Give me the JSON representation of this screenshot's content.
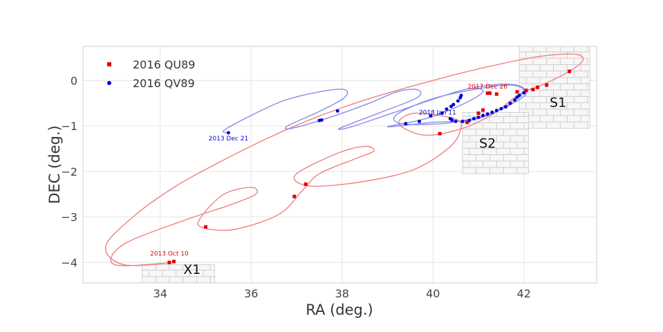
{
  "chart_data": {
    "type": "scatter",
    "xlabel": "RA (deg.)",
    "ylabel": "DEC (deg.)",
    "xlim": [
      32.3,
      43.6
    ],
    "ylim": [
      -4.45,
      0.75
    ],
    "x_ticks": [
      34,
      36,
      38,
      40,
      42
    ],
    "x_tick_labels": [
      "34",
      "36",
      "38",
      "40",
      "42"
    ],
    "y_ticks": [
      0,
      -1,
      -2,
      -3,
      -4
    ],
    "y_tick_labels": [
      "0",
      "−1",
      "−2",
      "−3",
      "−4"
    ],
    "grid": true,
    "legend_position": "top-left",
    "series": [
      {
        "name": "2016 QU89",
        "color": "#e00000",
        "orbit_color": "#f08080",
        "marker": "square",
        "points": [
          [
            34.2,
            -4.0
          ],
          [
            34.3,
            -3.98
          ],
          [
            35.0,
            -3.22
          ],
          [
            36.95,
            -2.55
          ],
          [
            37.2,
            -2.28
          ],
          [
            40.15,
            -1.17
          ],
          [
            40.75,
            -0.92
          ],
          [
            41.0,
            -0.72
          ],
          [
            41.1,
            -0.65
          ],
          [
            41.2,
            -0.28
          ],
          [
            41.25,
            -0.28
          ],
          [
            41.4,
            -0.3
          ],
          [
            41.85,
            -0.25
          ],
          [
            42.05,
            -0.22
          ],
          [
            42.2,
            -0.2
          ],
          [
            42.3,
            -0.15
          ],
          [
            42.5,
            -0.1
          ],
          [
            43.0,
            0.2
          ]
        ],
        "orbit": [
          [
            34.3,
            -4.0
          ],
          [
            33.0,
            -4.05
          ],
          [
            33.2,
            -3.6
          ],
          [
            34.6,
            -3.05
          ],
          [
            35.5,
            -2.75
          ],
          [
            36.1,
            -2.5
          ],
          [
            36.0,
            -2.35
          ],
          [
            35.4,
            -2.5
          ],
          [
            34.9,
            -3.0
          ],
          [
            34.9,
            -3.22
          ],
          [
            35.6,
            -3.28
          ],
          [
            36.6,
            -2.95
          ],
          [
            37.1,
            -2.45
          ],
          [
            37.5,
            -2.05
          ],
          [
            38.3,
            -1.72
          ],
          [
            38.7,
            -1.55
          ],
          [
            38.5,
            -1.45
          ],
          [
            37.9,
            -1.6
          ],
          [
            37.0,
            -2.05
          ],
          [
            37.1,
            -2.28
          ],
          [
            37.6,
            -2.32
          ],
          [
            38.6,
            -2.2
          ],
          [
            39.6,
            -1.95
          ],
          [
            40.35,
            -1.48
          ],
          [
            40.6,
            -1.1
          ],
          [
            40.5,
            -0.85
          ],
          [
            39.6,
            -0.72
          ],
          [
            39.25,
            -0.95
          ],
          [
            39.8,
            -1.2
          ],
          [
            40.6,
            -1.07
          ],
          [
            41.3,
            -0.75
          ],
          [
            41.9,
            -0.3
          ],
          [
            42.4,
            -0.1
          ],
          [
            43.0,
            0.2
          ],
          [
            43.3,
            0.45
          ],
          [
            43.1,
            0.58
          ],
          [
            42.3,
            0.52
          ],
          [
            41.2,
            0.3
          ],
          [
            40.0,
            0.0
          ],
          [
            38.6,
            -0.4
          ],
          [
            37.4,
            -0.82
          ],
          [
            36.3,
            -1.3
          ],
          [
            35.2,
            -1.85
          ],
          [
            34.3,
            -2.35
          ],
          [
            33.4,
            -3.0
          ],
          [
            32.8,
            -3.65
          ],
          [
            33.2,
            -4.05
          ],
          [
            34.3,
            -4.0
          ]
        ]
      },
      {
        "name": "2016 QV89",
        "color": "#0000dd",
        "orbit_color": "#8a8ae8",
        "marker": "circle",
        "points": [
          [
            35.5,
            -1.15
          ],
          [
            37.5,
            -0.88
          ],
          [
            37.55,
            -0.87
          ],
          [
            37.9,
            -0.67
          ],
          [
            39.4,
            -0.95
          ],
          [
            39.7,
            -0.9
          ],
          [
            39.95,
            -0.78
          ],
          [
            40.2,
            -0.72
          ],
          [
            40.3,
            -0.63
          ],
          [
            40.4,
            -0.57
          ],
          [
            40.45,
            -0.53
          ],
          [
            40.55,
            -0.45
          ],
          [
            40.6,
            -0.38
          ],
          [
            40.62,
            -0.33
          ],
          [
            40.38,
            -0.84
          ],
          [
            40.42,
            -0.87
          ],
          [
            40.5,
            -0.9
          ],
          [
            40.65,
            -0.9
          ],
          [
            40.8,
            -0.88
          ],
          [
            40.9,
            -0.84
          ],
          [
            41.0,
            -0.81
          ],
          [
            41.1,
            -0.77
          ],
          [
            41.2,
            -0.74
          ],
          [
            41.3,
            -0.7
          ],
          [
            41.4,
            -0.66
          ],
          [
            41.5,
            -0.62
          ],
          [
            41.6,
            -0.58
          ],
          [
            41.7,
            -0.5
          ],
          [
            41.8,
            -0.43
          ],
          [
            41.85,
            -0.37
          ],
          [
            41.9,
            -0.33
          ],
          [
            42.0,
            -0.27
          ]
        ],
        "orbit": [
          [
            35.5,
            -1.15
          ],
          [
            35.4,
            -1.1
          ],
          [
            35.9,
            -0.82
          ],
          [
            36.7,
            -0.45
          ],
          [
            37.5,
            -0.25
          ],
          [
            38.05,
            -0.2
          ],
          [
            38.05,
            -0.38
          ],
          [
            37.5,
            -0.68
          ],
          [
            36.8,
            -1.0
          ],
          [
            36.9,
            -1.05
          ],
          [
            37.7,
            -0.82
          ],
          [
            38.6,
            -0.5
          ],
          [
            39.2,
            -0.25
          ],
          [
            39.65,
            -0.2
          ],
          [
            39.65,
            -0.38
          ],
          [
            38.8,
            -0.72
          ],
          [
            37.95,
            -1.05
          ],
          [
            38.2,
            -1.02
          ],
          [
            39.1,
            -0.72
          ],
          [
            40.1,
            -0.38
          ],
          [
            40.8,
            -0.18
          ],
          [
            41.1,
            -0.25
          ],
          [
            40.6,
            -0.55
          ],
          [
            39.8,
            -0.85
          ],
          [
            39.0,
            -1.02
          ],
          [
            40.0,
            -0.92
          ],
          [
            40.8,
            -0.88
          ],
          [
            41.4,
            -0.68
          ],
          [
            41.9,
            -0.35
          ],
          [
            42.0,
            -0.2
          ],
          [
            41.7,
            -0.1
          ],
          [
            41.0,
            -0.18
          ],
          [
            40.0,
            -0.4
          ],
          [
            39.2,
            -0.75
          ],
          [
            39.3,
            -0.95
          ],
          [
            40.2,
            -0.95
          ],
          [
            40.8,
            -0.85
          ],
          [
            41.3,
            -0.72
          ],
          [
            41.8,
            -0.48
          ],
          [
            42.05,
            -0.28
          ],
          [
            41.9,
            -0.12
          ],
          [
            41.5,
            -0.08
          ],
          [
            40.9,
            -0.15
          ]
        ]
      }
    ],
    "annotations": [
      {
        "text": "2013 Oct 10",
        "x": 34.2,
        "y": -3.85,
        "color": "#e00000"
      },
      {
        "text": "2013 Dec 21",
        "x": 35.5,
        "y": -1.32,
        "color": "#0000dd"
      },
      {
        "text": "2017 Dec 26",
        "x": 41.2,
        "y": -0.18,
        "color": "#e00000"
      },
      {
        "text": "2018 Jan 11",
        "x": 40.1,
        "y": -0.75,
        "color": "#0000dd"
      }
    ],
    "fields": [
      {
        "label": "S1",
        "x": 42.75,
        "y": -0.58
      },
      {
        "label": "S2",
        "x": 41.2,
        "y": -1.48
      },
      {
        "label": "X1",
        "x": 34.7,
        "y": -4.25
      }
    ]
  }
}
